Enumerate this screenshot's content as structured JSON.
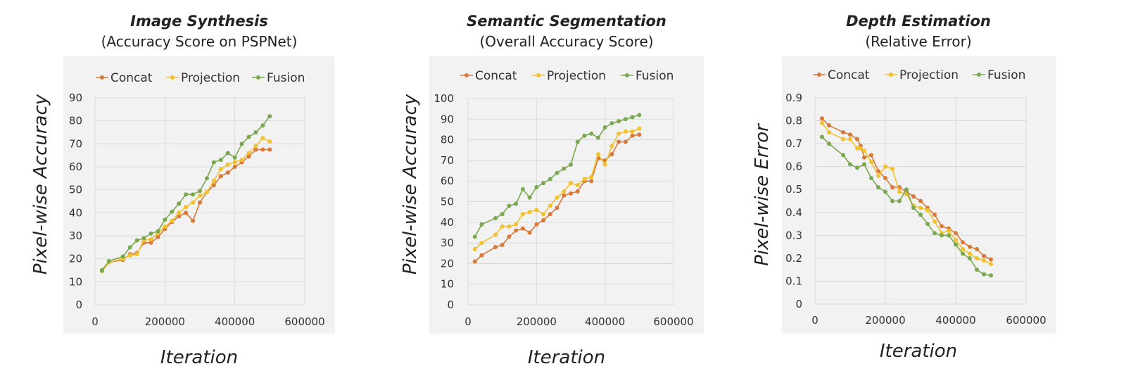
{
  "colors": {
    "Concat": "#d8793a",
    "Projection": "#f2c12e",
    "Fusion": "#79a84f"
  },
  "chart_data": [
    {
      "type": "line",
      "title": "Image Synthesis",
      "subtitle": "(Accuracy Score on PSPNet)",
      "xlabel": "Iteration",
      "ylabel": "Pixel-wise Accuracy",
      "xlim": [
        0,
        600000
      ],
      "ylim": [
        0,
        90
      ],
      "xticks": [
        "0",
        "200000",
        "400000",
        "600000"
      ],
      "yticks": [
        "0",
        "10",
        "20",
        "30",
        "40",
        "50",
        "60",
        "70",
        "80",
        "90"
      ],
      "legend_position": "top",
      "grid": true,
      "series": [
        {
          "name": "Concat",
          "x": [
            20000,
            40000,
            80000,
            100000,
            120000,
            140000,
            160000,
            180000,
            200000,
            220000,
            240000,
            260000,
            280000,
            300000,
            320000,
            340000,
            360000,
            380000,
            400000,
            420000,
            440000,
            460000,
            480000,
            500000
          ],
          "y": [
            15,
            18.5,
            19.5,
            22,
            22.5,
            27,
            27,
            29.5,
            33,
            36,
            38.5,
            40,
            36.5,
            44.5,
            49,
            52,
            56,
            57.5,
            60,
            62,
            64.5,
            67.5,
            67.5,
            67.5
          ]
        },
        {
          "name": "Projection",
          "x": [
            20000,
            40000,
            80000,
            100000,
            120000,
            140000,
            160000,
            180000,
            200000,
            220000,
            240000,
            260000,
            280000,
            300000,
            320000,
            340000,
            360000,
            380000,
            400000,
            420000,
            440000,
            460000,
            480000,
            500000
          ],
          "y": [
            14.5,
            18.5,
            20,
            21.5,
            22,
            28,
            28.5,
            31,
            34,
            36.5,
            40,
            42.5,
            44.5,
            47.5,
            49,
            54,
            59,
            61,
            62,
            63,
            66,
            69,
            72.5,
            71
          ]
        },
        {
          "name": "Fusion",
          "x": [
            20000,
            40000,
            80000,
            100000,
            120000,
            140000,
            160000,
            180000,
            200000,
            220000,
            240000,
            260000,
            280000,
            300000,
            320000,
            340000,
            360000,
            380000,
            400000,
            420000,
            440000,
            460000,
            480000,
            500000
          ],
          "y": [
            15,
            19,
            21,
            25,
            28,
            29,
            31,
            32,
            37,
            40.5,
            44,
            48,
            48,
            49.5,
            55,
            62,
            63,
            66,
            64,
            70,
            73,
            75,
            78,
            82
          ]
        }
      ]
    },
    {
      "type": "line",
      "title": "Semantic Segmentation",
      "subtitle": "(Overall Accuracy Score)",
      "xlabel": "Iteration",
      "ylabel": "Pixel-wise Accuracy",
      "xlim": [
        0,
        600000
      ],
      "ylim": [
        0,
        100
      ],
      "xticks": [
        "0",
        "200000",
        "400000",
        "600000"
      ],
      "yticks": [
        "0",
        "10",
        "20",
        "30",
        "40",
        "50",
        "60",
        "70",
        "80",
        "90",
        "100"
      ],
      "legend_position": "top",
      "grid": true,
      "series": [
        {
          "name": "Concat",
          "x": [
            20000,
            40000,
            80000,
            100000,
            120000,
            140000,
            160000,
            180000,
            200000,
            220000,
            240000,
            260000,
            280000,
            300000,
            320000,
            340000,
            360000,
            380000,
            400000,
            420000,
            440000,
            460000,
            480000,
            500000
          ],
          "y": [
            21,
            24,
            28,
            29,
            33,
            36,
            37,
            35,
            39,
            41,
            44,
            47,
            53,
            54,
            55,
            60,
            60,
            71,
            70,
            73,
            79,
            79,
            82,
            82.5
          ]
        },
        {
          "name": "Projection",
          "x": [
            20000,
            40000,
            80000,
            100000,
            120000,
            140000,
            160000,
            180000,
            200000,
            220000,
            240000,
            260000,
            280000,
            300000,
            320000,
            340000,
            360000,
            380000,
            400000,
            420000,
            440000,
            460000,
            480000,
            500000
          ],
          "y": [
            27,
            30,
            34,
            38,
            38,
            39,
            44,
            45,
            46,
            44,
            48,
            52,
            55,
            59,
            58,
            61,
            62,
            73,
            68,
            77,
            83,
            84,
            84,
            85.5
          ]
        },
        {
          "name": "Fusion",
          "x": [
            20000,
            40000,
            80000,
            100000,
            120000,
            140000,
            160000,
            180000,
            200000,
            220000,
            240000,
            260000,
            280000,
            300000,
            320000,
            340000,
            360000,
            380000,
            400000,
            420000,
            440000,
            460000,
            480000,
            500000
          ],
          "y": [
            33,
            39,
            42,
            44,
            48,
            49,
            56,
            52,
            57,
            59,
            61,
            64,
            66,
            68,
            79,
            82,
            83,
            81,
            86,
            88,
            89,
            90,
            91,
            92
          ]
        }
      ]
    },
    {
      "type": "line",
      "title": "Depth Estimation",
      "subtitle": "(Relative Error)",
      "xlabel": "Iteration",
      "ylabel": "Pixel-wise Error",
      "xlim": [
        0,
        600000
      ],
      "ylim": [
        0,
        0.9
      ],
      "xticks": [
        "0",
        "200000",
        "400000",
        "600000"
      ],
      "yticks": [
        "0",
        "0.1",
        "0.2",
        "0.3",
        "0.4",
        "0.5",
        "0.6",
        "0.7",
        "0.8",
        "0.9"
      ],
      "legend_position": "top",
      "grid": true,
      "series": [
        {
          "name": "Concat",
          "x": [
            20000,
            40000,
            80000,
            100000,
            120000,
            130000,
            140000,
            160000,
            180000,
            200000,
            220000,
            240000,
            260000,
            280000,
            300000,
            320000,
            340000,
            360000,
            380000,
            400000,
            420000,
            440000,
            460000,
            480000,
            500000
          ],
          "y": [
            0.81,
            0.78,
            0.75,
            0.74,
            0.72,
            0.69,
            0.64,
            0.65,
            0.58,
            0.55,
            0.51,
            0.51,
            0.49,
            0.47,
            0.45,
            0.42,
            0.39,
            0.34,
            0.33,
            0.31,
            0.27,
            0.25,
            0.24,
            0.21,
            0.195
          ]
        },
        {
          "name": "Projection",
          "x": [
            20000,
            40000,
            80000,
            100000,
            120000,
            130000,
            140000,
            160000,
            180000,
            200000,
            220000,
            240000,
            260000,
            280000,
            300000,
            320000,
            340000,
            360000,
            380000,
            400000,
            420000,
            440000,
            460000,
            480000,
            500000
          ],
          "y": [
            0.79,
            0.75,
            0.72,
            0.72,
            0.68,
            0.68,
            0.67,
            0.62,
            0.56,
            0.6,
            0.59,
            0.49,
            0.48,
            0.43,
            0.42,
            0.41,
            0.36,
            0.31,
            0.32,
            0.28,
            0.24,
            0.22,
            0.2,
            0.19,
            0.175
          ]
        },
        {
          "name": "Fusion",
          "x": [
            20000,
            40000,
            80000,
            100000,
            120000,
            140000,
            160000,
            180000,
            200000,
            220000,
            240000,
            260000,
            280000,
            300000,
            320000,
            340000,
            360000,
            380000,
            400000,
            420000,
            440000,
            460000,
            480000,
            500000
          ],
          "y": [
            0.73,
            0.7,
            0.65,
            0.61,
            0.595,
            0.61,
            0.55,
            0.51,
            0.49,
            0.45,
            0.45,
            0.5,
            0.42,
            0.39,
            0.35,
            0.31,
            0.3,
            0.3,
            0.26,
            0.22,
            0.2,
            0.15,
            0.13,
            0.125
          ]
        }
      ]
    }
  ]
}
